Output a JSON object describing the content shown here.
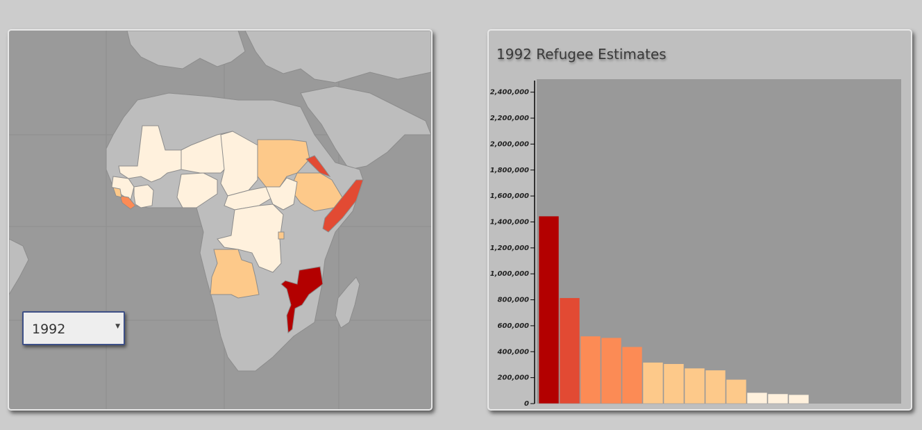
{
  "map": {
    "selected_year": "1992",
    "colors": {
      "ocean": "#9a9a9a",
      "land": "#bdbdbd",
      "land_border": "#8c8c8c",
      "scale": [
        "#fff1dd",
        "#fdc98a",
        "#fc8b55",
        "#e24a33",
        "#b30000"
      ]
    }
  },
  "chart_data": {
    "type": "bar",
    "title": "1992 Refugee Estimates",
    "ylim": [
      0,
      2500000
    ],
    "yticks": [
      "0",
      "200,000",
      "400,000",
      "600,000",
      "800,000",
      "1,000,000",
      "1,200,000",
      "1,400,000",
      "1,600,000",
      "1,800,000",
      "2,000,000",
      "2,200,000",
      "2,400,000"
    ],
    "ytick_values": [
      0,
      200000,
      400000,
      600000,
      800000,
      1000000,
      1200000,
      1400000,
      1600000,
      1800000,
      2000000,
      2200000,
      2400000
    ],
    "values": [
      1445000,
      815000,
      520000,
      508000,
      438000,
      318000,
      307000,
      273000,
      258000,
      186000,
      85000,
      75000,
      69000
    ],
    "colors": [
      "#b30000",
      "#e24a33",
      "#fc8b55",
      "#fc8b55",
      "#fc8b55",
      "#fdc98a",
      "#fdc98a",
      "#fdc98a",
      "#fdc98a",
      "#fdc98a",
      "#fff1dd",
      "#fff1dd",
      "#fff1dd"
    ],
    "plot_background": "#999999"
  }
}
